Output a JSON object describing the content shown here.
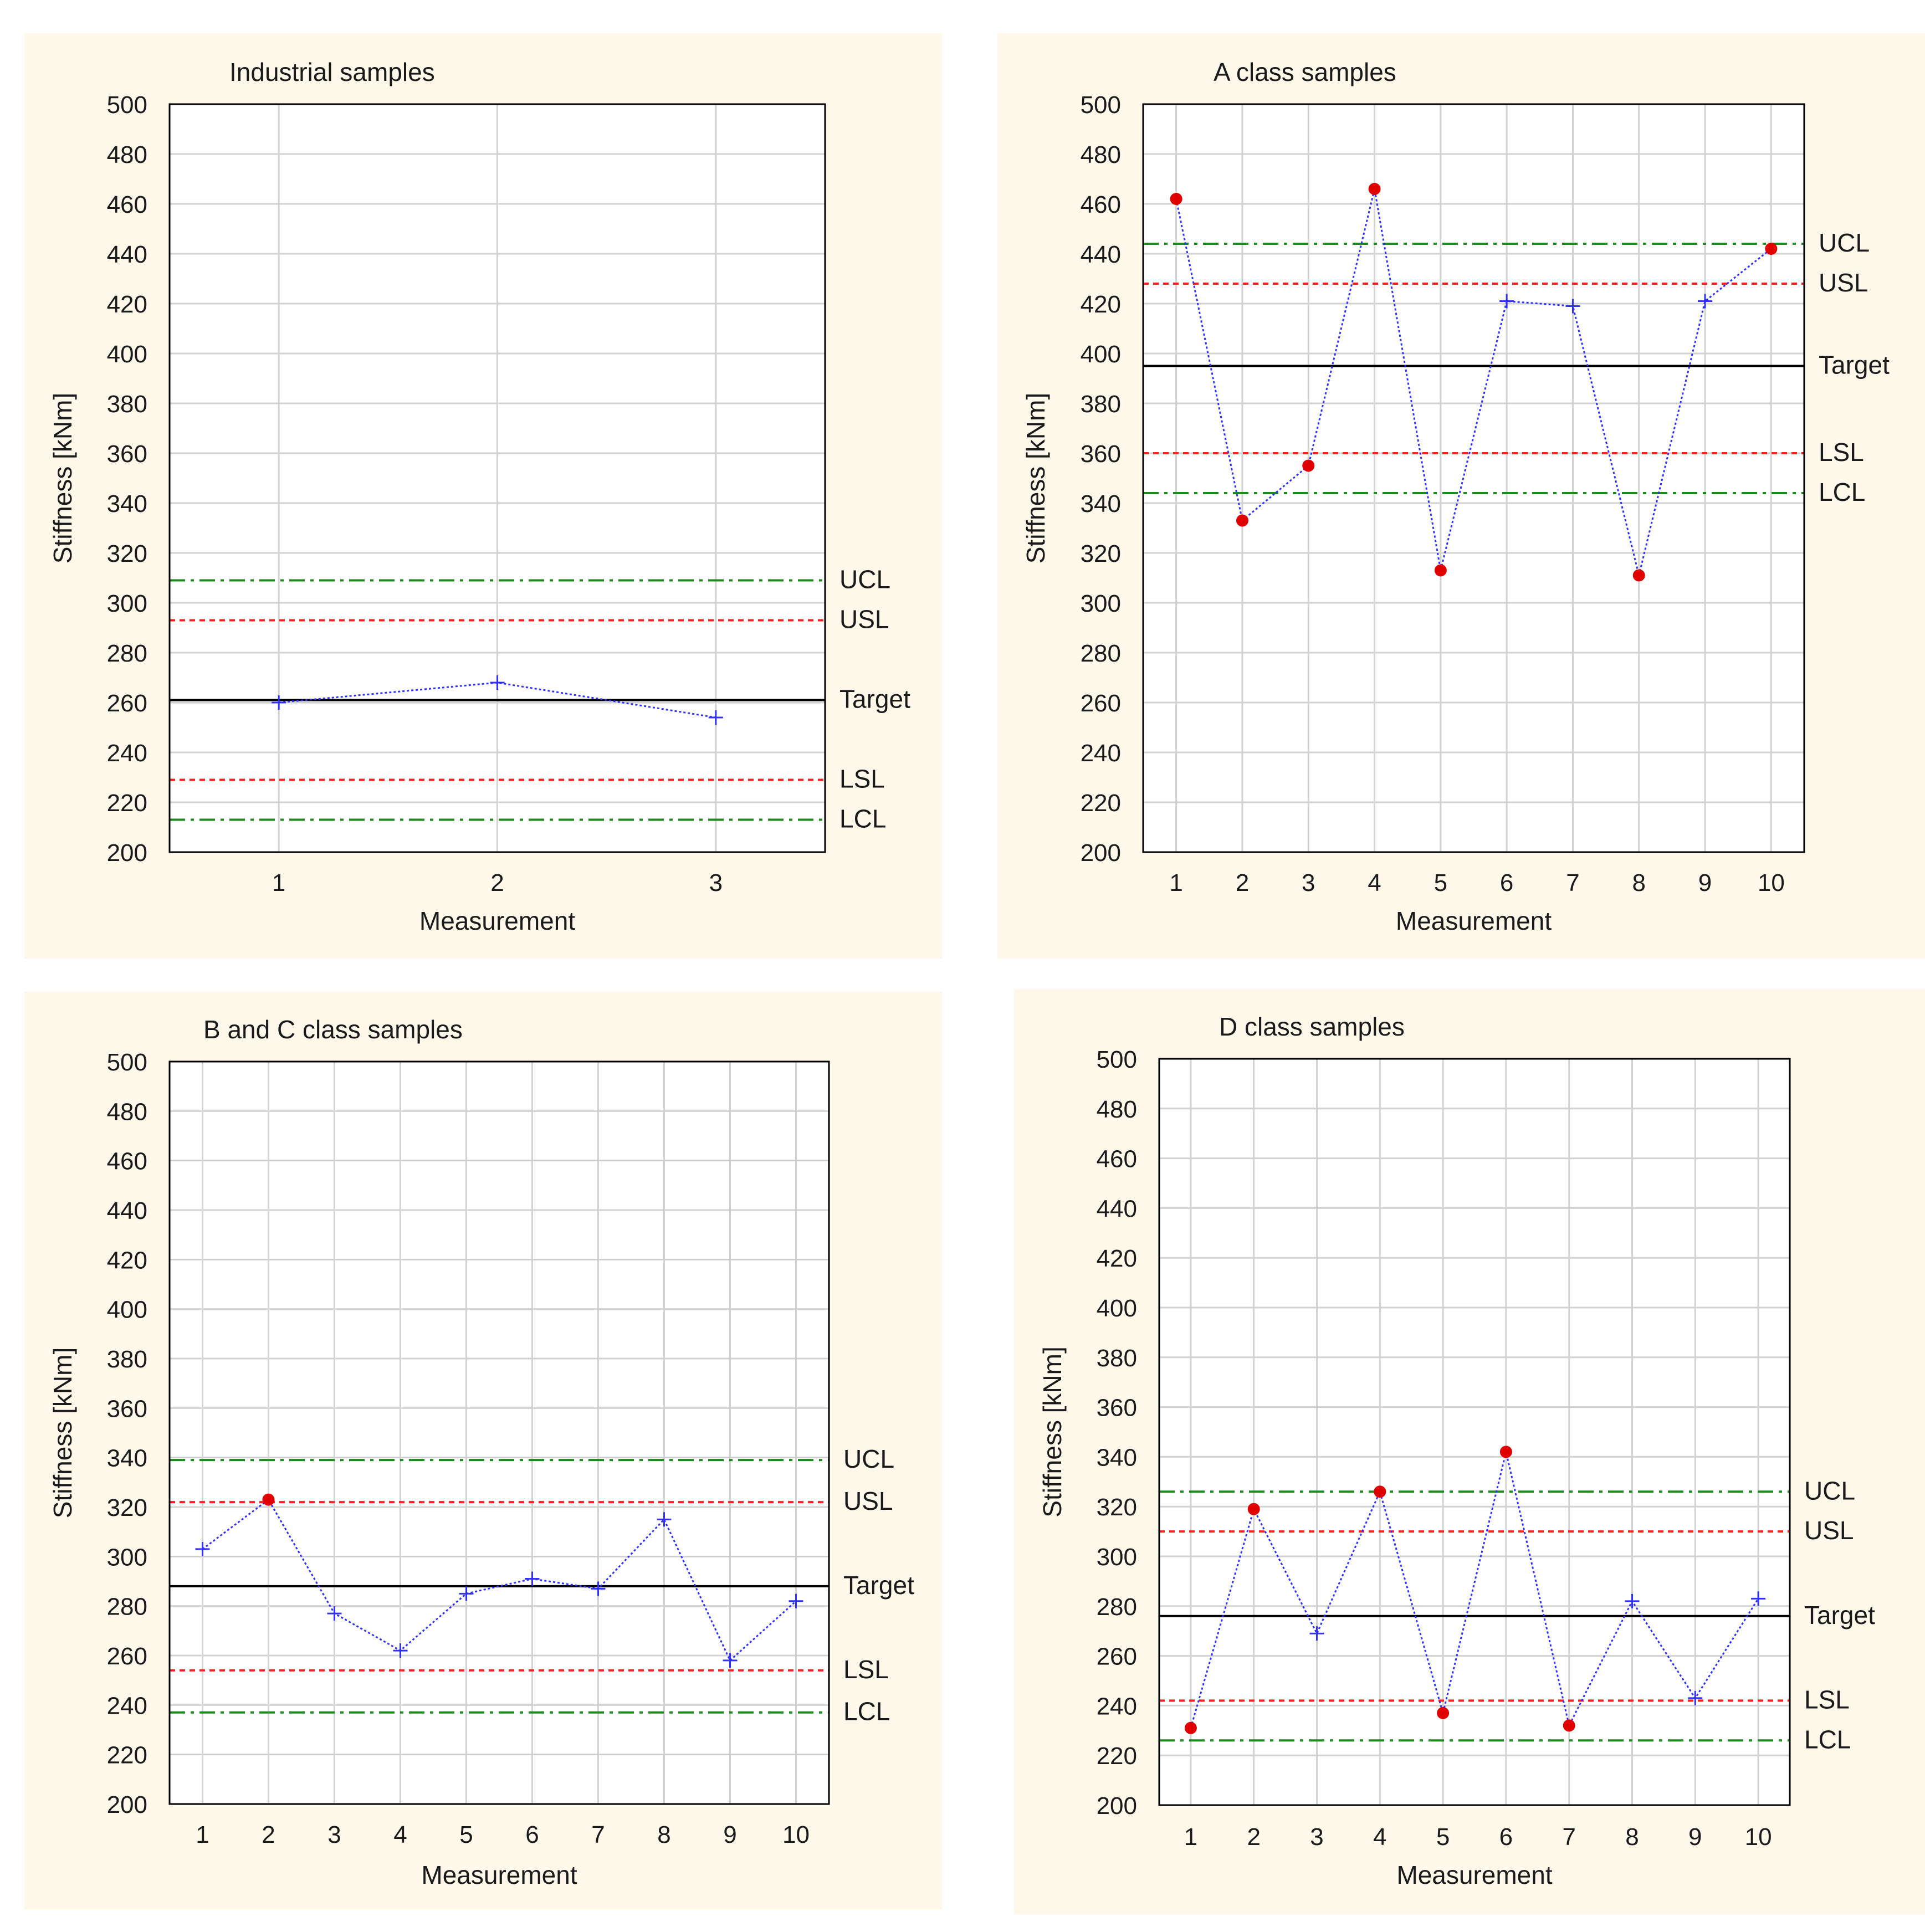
{
  "chart_data": [
    {
      "type": "line",
      "title": "Industrial samples",
      "xlabel": "Measurement",
      "ylabel": "Stiffness [kNm]",
      "ylim": [
        200,
        500
      ],
      "yticks": [
        200,
        220,
        240,
        260,
        280,
        300,
        320,
        340,
        360,
        380,
        400,
        420,
        440,
        460,
        480,
        500
      ],
      "x": [
        1,
        2,
        3
      ],
      "values": [
        260,
        268,
        254
      ],
      "out_of_spec": [
        false,
        false,
        false
      ],
      "limits": {
        "UCL": 309,
        "USL": 293,
        "Target": 261,
        "LSL": 229,
        "LCL": 213
      },
      "limit_labels": {
        "UCL": "UCL",
        "USL": "USL",
        "Target": "Target",
        "LSL": "LSL",
        "LCL": "LCL"
      }
    },
    {
      "type": "line",
      "title": "A class samples",
      "xlabel": "Measurement",
      "ylabel": "Stiffness [kNm]",
      "ylim": [
        200,
        500
      ],
      "yticks": [
        200,
        220,
        240,
        260,
        280,
        300,
        320,
        340,
        360,
        380,
        400,
        420,
        440,
        460,
        480,
        500
      ],
      "x": [
        1,
        2,
        3,
        4,
        5,
        6,
        7,
        8,
        9,
        10
      ],
      "values": [
        462,
        333,
        355,
        466,
        313,
        421,
        419,
        311,
        421,
        442
      ],
      "out_of_spec": [
        true,
        true,
        true,
        true,
        true,
        false,
        false,
        true,
        false,
        true
      ],
      "limits": {
        "UCL": 444,
        "USL": 428,
        "Target": 395,
        "LSL": 360,
        "LCL": 344
      },
      "limit_labels": {
        "UCL": "UCL",
        "USL": "USL",
        "Target": "Target",
        "LSL": "LSL",
        "LCL": "LCL"
      }
    },
    {
      "type": "line",
      "title": "B and C class samples",
      "xlabel": "Measurement",
      "ylabel": "Stiffness [kNm]",
      "ylim": [
        200,
        500
      ],
      "yticks": [
        200,
        220,
        240,
        260,
        280,
        300,
        320,
        340,
        360,
        380,
        400,
        420,
        440,
        460,
        480,
        500
      ],
      "x": [
        1,
        2,
        3,
        4,
        5,
        6,
        7,
        8,
        9,
        10
      ],
      "values": [
        303,
        323,
        277,
        262,
        285,
        291,
        287,
        315,
        258,
        282
      ],
      "out_of_spec": [
        false,
        true,
        false,
        false,
        false,
        false,
        false,
        false,
        false,
        false
      ],
      "limits": {
        "UCL": 339,
        "USL": 322,
        "Target": 288,
        "LSL": 254,
        "LCL": 237
      },
      "limit_labels": {
        "UCL": "UCL",
        "USL": "USL",
        "Target": "Target",
        "LSL": "LSL",
        "LCL": "LCL"
      }
    },
    {
      "type": "line",
      "title": "D class samples",
      "xlabel": "Measurement",
      "ylabel": "Stiffness [kNm]",
      "ylim": [
        200,
        500
      ],
      "yticks": [
        200,
        220,
        240,
        260,
        280,
        300,
        320,
        340,
        360,
        380,
        400,
        420,
        440,
        460,
        480,
        500
      ],
      "x": [
        1,
        2,
        3,
        4,
        5,
        6,
        7,
        8,
        9,
        10
      ],
      "values": [
        231,
        319,
        269,
        326,
        237,
        342,
        232,
        282,
        243,
        283
      ],
      "out_of_spec": [
        true,
        true,
        false,
        true,
        true,
        true,
        true,
        false,
        false,
        false
      ],
      "limits": {
        "UCL": 326,
        "USL": 310,
        "Target": 276,
        "LSL": 242,
        "LCL": 226
      },
      "limit_labels": {
        "UCL": "UCL",
        "USL": "USL",
        "Target": "Target",
        "LSL": "LSL",
        "LCL": "LCL"
      }
    }
  ],
  "colors": {
    "panel_bg": "#fdf8ea",
    "plot_bg": "#ffffff",
    "grid": "#d2d2d2",
    "series": "#3030ff",
    "out_of_spec_marker": "#e00000",
    "control_limit": "#1c8a1c",
    "spec_limit": "#ff2020",
    "target": "#000000"
  }
}
